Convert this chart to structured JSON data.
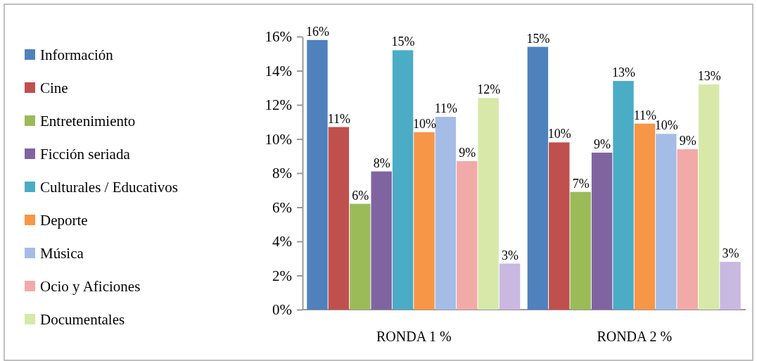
{
  "chart_data": {
    "type": "bar",
    "categories": [
      "RONDA 1 %",
      "RONDA 2 %"
    ],
    "series": [
      {
        "name": "Información",
        "color": "#4f81bd",
        "values": [
          15.8,
          15.4
        ],
        "value_labels": [
          "16%",
          "15%"
        ]
      },
      {
        "name": "Cine",
        "color": "#c0504d",
        "values": [
          10.7,
          9.8
        ],
        "value_labels": [
          "11%",
          "10%"
        ]
      },
      {
        "name": "Entretenimiento",
        "color": "#9bbb59",
        "values": [
          6.2,
          6.9
        ],
        "value_labels": [
          "6%",
          "7%"
        ]
      },
      {
        "name": "Ficción seriada",
        "color": "#8064a2",
        "values": [
          8.1,
          9.2
        ],
        "value_labels": [
          "8%",
          "9%"
        ]
      },
      {
        "name": "Culturales / Educativos",
        "color": "#4bacc6",
        "values": [
          15.2,
          13.4
        ],
        "value_labels": [
          "15%",
          "13%"
        ]
      },
      {
        "name": "Deporte",
        "color": "#f79646",
        "values": [
          10.4,
          10.9
        ],
        "value_labels": [
          "10%",
          "11%"
        ]
      },
      {
        "name": "Música",
        "color": "#a5bde6",
        "values": [
          11.3,
          10.3
        ],
        "value_labels": [
          "11%",
          "10%"
        ]
      },
      {
        "name": "Ocio y Aficiones",
        "color": "#f2aaa8",
        "values": [
          8.7,
          9.4
        ],
        "value_labels": [
          "9%",
          "9%"
        ]
      },
      {
        "name": "Documentales",
        "color": "#d7e8a9",
        "values": [
          12.4,
          13.2
        ],
        "value_labels": [
          "12%",
          "13%"
        ]
      },
      {
        "color": "#c9b8e0",
        "values": [
          2.7,
          2.8
        ],
        "value_labels": [
          "3%",
          "3%"
        ]
      }
    ],
    "ylim": [
      0,
      16
    ],
    "yticks": [
      {
        "value": 0,
        "label": "0%"
      },
      {
        "value": 2,
        "label": "2%"
      },
      {
        "value": 4,
        "label": "4%"
      },
      {
        "value": 6,
        "label": "6%"
      },
      {
        "value": 8,
        "label": "8%"
      },
      {
        "value": 10,
        "label": "10%"
      },
      {
        "value": 12,
        "label": "12%"
      },
      {
        "value": 14,
        "label": "14%"
      },
      {
        "value": 16,
        "label": "16%"
      }
    ],
    "legend": "left"
  }
}
